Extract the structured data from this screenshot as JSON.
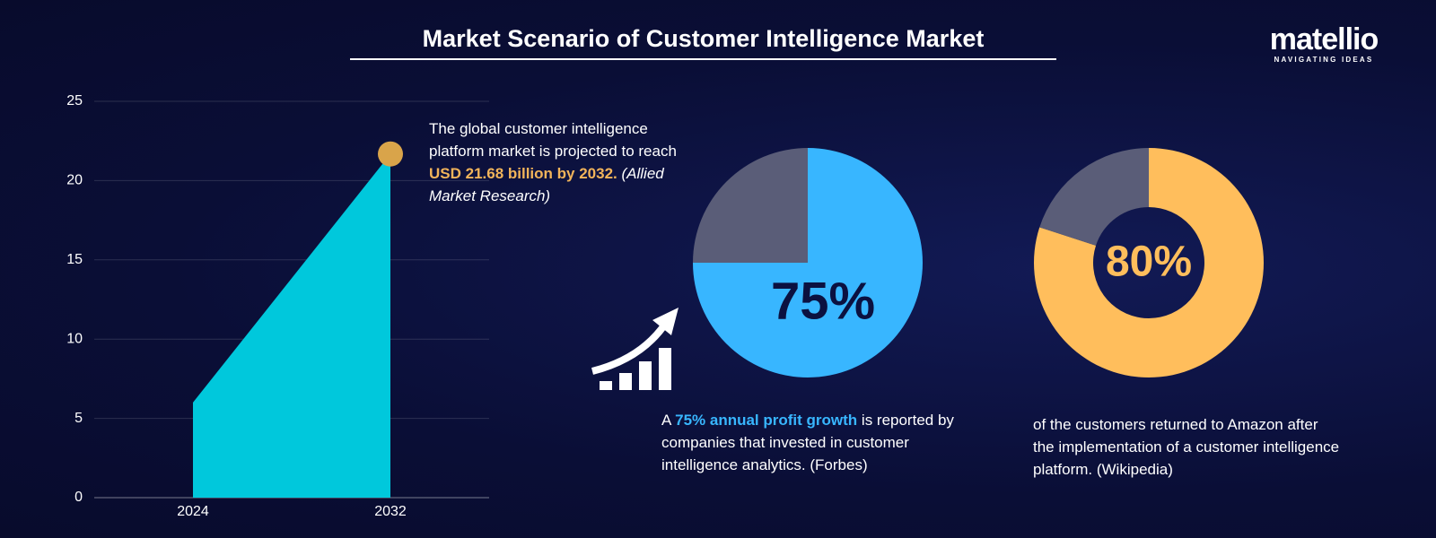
{
  "title": "Market Scenario of Customer Intelligence Market",
  "logo": {
    "name": "matellio",
    "tagline": "NAVIGATING IDEAS"
  },
  "chart_data": [
    {
      "type": "area",
      "categories": [
        "2024",
        "2032"
      ],
      "values": [
        6,
        21.68
      ],
      "color": "#00c8dc",
      "markers": [
        null,
        "#d9a44a"
      ],
      "ylim": [
        0,
        25
      ],
      "yticks": [
        0,
        5,
        10,
        15,
        20,
        25
      ],
      "grid": true,
      "annotation": [
        {
          "text": "The global customer intelligence platform market is projected to reach ",
          "style": "plain"
        },
        {
          "text": "USD 21.68 billion by 2032.",
          "style": "highlight",
          "color": "#f2b45a"
        },
        {
          "text": " (Allied Market Research)",
          "style": "italic"
        }
      ]
    },
    {
      "type": "pie",
      "values": [
        75,
        25
      ],
      "value_labels": [
        "75%",
        null
      ],
      "colors": [
        "#38b6ff",
        "#5a5d78"
      ],
      "label_color": "#0b1140",
      "caption": [
        {
          "text": "A ",
          "style": "plain"
        },
        {
          "text": "75% annual profit growth",
          "style": "highlight",
          "color": "#38b6ff"
        },
        {
          "text": " is reported by companies that invested in customer intelligence analytics. (Forbes)",
          "style": "plain"
        }
      ]
    },
    {
      "type": "donut",
      "values": [
        80,
        20
      ],
      "value_labels": [
        "80%",
        null
      ],
      "colors": [
        "#ffbe5c",
        "#5a5d78"
      ],
      "label_color": "#ffbe5c",
      "caption": [
        {
          "text": "of the customers returned to Amazon after the implementation of a customer intelligence platform. (Wikipedia)",
          "style": "plain"
        }
      ]
    }
  ]
}
